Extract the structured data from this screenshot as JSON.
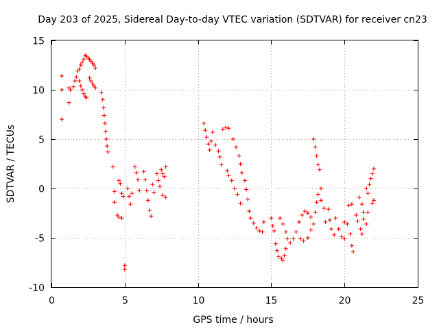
{
  "chart_data": {
    "type": "scatter",
    "title": "Day 203 of 2025, Sidereal Day-to-day VTEC variation (SDTVAR) for receiver cn23",
    "xlabel": "GPS time / hours",
    "ylabel": "SDTVAR / TECUs",
    "xlim": [
      0,
      25
    ],
    "ylim": [
      -10,
      15
    ],
    "x_ticks": [
      0,
      5,
      10,
      15,
      20,
      25
    ],
    "x_tick_labels": [
      "0",
      "5",
      "10",
      "15",
      "20",
      "25"
    ],
    "y_ticks": [
      -10,
      -5,
      0,
      5,
      10,
      15
    ],
    "y_tick_labels": [
      "-10",
      "-5",
      "0",
      "5",
      "10",
      "15"
    ],
    "grid": true,
    "marker": "+",
    "color": "#ff0000",
    "series": [
      {
        "name": "SDTVAR",
        "points": [
          [
            0.7,
            11.4
          ],
          [
            0.7,
            10.0
          ],
          [
            0.7,
            7.0
          ],
          [
            1.2,
            10.2
          ],
          [
            1.2,
            8.7
          ],
          [
            1.3,
            10.0
          ],
          [
            1.5,
            10.3
          ],
          [
            1.6,
            10.9
          ],
          [
            1.7,
            11.3
          ],
          [
            1.8,
            11.9
          ],
          [
            1.9,
            12.1
          ],
          [
            2.0,
            12.5
          ],
          [
            2.1,
            12.8
          ],
          [
            2.2,
            13.1
          ],
          [
            2.3,
            13.5
          ],
          [
            2.4,
            13.4
          ],
          [
            2.5,
            13.2
          ],
          [
            2.6,
            13.1
          ],
          [
            2.7,
            12.9
          ],
          [
            2.8,
            12.7
          ],
          [
            2.9,
            12.5
          ],
          [
            3.0,
            12.2
          ],
          [
            1.9,
            10.9
          ],
          [
            2.0,
            10.4
          ],
          [
            2.1,
            10.0
          ],
          [
            2.2,
            9.6
          ],
          [
            2.3,
            9.3
          ],
          [
            2.4,
            9.2
          ],
          [
            2.6,
            11.2
          ],
          [
            2.7,
            10.9
          ],
          [
            2.8,
            10.6
          ],
          [
            2.9,
            10.4
          ],
          [
            3.0,
            10.2
          ],
          [
            3.4,
            9.7
          ],
          [
            3.5,
            9.0
          ],
          [
            3.55,
            8.2
          ],
          [
            3.6,
            7.4
          ],
          [
            3.65,
            6.6
          ],
          [
            3.7,
            5.8
          ],
          [
            3.75,
            5.0
          ],
          [
            3.8,
            4.3
          ],
          [
            3.85,
            3.7
          ],
          [
            4.2,
            2.2
          ],
          [
            4.3,
            -0.3
          ],
          [
            4.3,
            -1.4
          ],
          [
            4.6,
            0.8
          ],
          [
            4.7,
            0.5
          ],
          [
            4.8,
            -0.5
          ],
          [
            4.9,
            -0.8
          ],
          [
            4.5,
            -2.7
          ],
          [
            4.6,
            -2.9
          ],
          [
            4.8,
            -3.0
          ],
          [
            5.0,
            -7.8
          ],
          [
            5.0,
            -8.2
          ],
          [
            5.2,
            0.0
          ],
          [
            5.3,
            -0.8
          ],
          [
            5.4,
            -1.6
          ],
          [
            5.5,
            -0.5
          ],
          [
            5.7,
            2.2
          ],
          [
            5.8,
            1.6
          ],
          [
            5.9,
            0.9
          ],
          [
            6.0,
            -0.2
          ],
          [
            6.3,
            1.7
          ],
          [
            6.4,
            0.9
          ],
          [
            6.5,
            -0.2
          ],
          [
            6.6,
            -1.2
          ],
          [
            6.7,
            -2.2
          ],
          [
            6.8,
            -2.8
          ],
          [
            6.9,
            0.4
          ],
          [
            7.0,
            -0.4
          ],
          [
            7.2,
            1.5
          ],
          [
            7.3,
            0.8
          ],
          [
            7.4,
            0.2
          ],
          [
            7.5,
            1.9
          ],
          [
            7.6,
            1.5
          ],
          [
            7.7,
            1.2
          ],
          [
            7.8,
            2.2
          ],
          [
            7.6,
            -0.7
          ],
          [
            7.8,
            -0.9
          ],
          [
            10.4,
            6.6
          ],
          [
            10.5,
            5.9
          ],
          [
            10.6,
            5.2
          ],
          [
            10.7,
            4.5
          ],
          [
            10.8,
            3.9
          ],
          [
            10.9,
            4.8
          ],
          [
            11.0,
            5.7
          ],
          [
            11.2,
            4.4
          ],
          [
            11.4,
            3.8
          ],
          [
            11.5,
            3.2
          ],
          [
            11.6,
            2.4
          ],
          [
            11.7,
            6.0
          ],
          [
            11.9,
            6.2
          ],
          [
            12.1,
            6.1
          ],
          [
            12.0,
            1.8
          ],
          [
            12.1,
            1.3
          ],
          [
            12.3,
            0.8
          ],
          [
            12.4,
            5.0
          ],
          [
            12.6,
            4.2
          ],
          [
            12.8,
            3.3
          ],
          [
            12.9,
            2.5
          ],
          [
            12.5,
            0.0
          ],
          [
            12.7,
            -0.6
          ],
          [
            12.9,
            -1.5
          ],
          [
            13.0,
            1.6
          ],
          [
            13.2,
            0.8
          ],
          [
            13.3,
            -0.1
          ],
          [
            13.4,
            -1.1
          ],
          [
            13.5,
            -2.3
          ],
          [
            13.6,
            -3.0
          ],
          [
            13.8,
            -3.5
          ],
          [
            14.0,
            -4.0
          ],
          [
            14.2,
            -4.3
          ],
          [
            14.4,
            -4.4
          ],
          [
            14.5,
            -3.4
          ],
          [
            15.0,
            -3.0
          ],
          [
            15.1,
            -3.8
          ],
          [
            15.2,
            -4.3
          ],
          [
            15.3,
            -5.6
          ],
          [
            15.4,
            -6.3
          ],
          [
            15.5,
            -6.9
          ],
          [
            15.7,
            -7.1
          ],
          [
            15.8,
            -7.3
          ],
          [
            15.9,
            -6.8
          ],
          [
            16.0,
            -6.1
          ],
          [
            15.6,
            -3.0
          ],
          [
            15.8,
            -3.6
          ],
          [
            16.0,
            -4.4
          ],
          [
            16.1,
            -5.1
          ],
          [
            16.3,
            -5.5
          ],
          [
            16.5,
            -5.1
          ],
          [
            16.7,
            -4.4
          ],
          [
            16.9,
            -3.4
          ],
          [
            17.1,
            -2.7
          ],
          [
            17.3,
            -2.3
          ],
          [
            17.5,
            -2.5
          ],
          [
            17.7,
            -2.9
          ],
          [
            17.0,
            -5.1
          ],
          [
            17.2,
            -5.3
          ],
          [
            17.5,
            -5.0
          ],
          [
            17.7,
            -4.2
          ],
          [
            17.9,
            -3.6
          ],
          [
            18.0,
            -2.4
          ],
          [
            18.1,
            -1.4
          ],
          [
            18.2,
            -0.6
          ],
          [
            18.4,
            0.0
          ],
          [
            17.9,
            5.0
          ],
          [
            18.0,
            4.2
          ],
          [
            18.1,
            3.3
          ],
          [
            18.2,
            2.4
          ],
          [
            18.3,
            1.9
          ],
          [
            18.4,
            -1.2
          ],
          [
            18.6,
            -2.0
          ],
          [
            18.7,
            -3.4
          ],
          [
            18.9,
            -2.1
          ],
          [
            19.0,
            -3.2
          ],
          [
            19.1,
            -4.1
          ],
          [
            19.3,
            -4.7
          ],
          [
            19.4,
            -3.0
          ],
          [
            19.6,
            -4.1
          ],
          [
            19.8,
            -4.9
          ],
          [
            20.0,
            -5.1
          ],
          [
            20.0,
            -3.4
          ],
          [
            20.2,
            -3.6
          ],
          [
            20.4,
            -4.6
          ],
          [
            20.5,
            -5.8
          ],
          [
            20.6,
            -6.4
          ],
          [
            20.3,
            -1.7
          ],
          [
            20.5,
            -1.6
          ],
          [
            20.8,
            -2.7
          ],
          [
            20.9,
            -3.3
          ],
          [
            21.1,
            -4.1
          ],
          [
            21.2,
            -4.6
          ],
          [
            21.0,
            -0.9
          ],
          [
            21.2,
            -1.6
          ],
          [
            21.3,
            -2.4
          ],
          [
            21.3,
            -3.1
          ],
          [
            21.5,
            -3.6
          ],
          [
            21.6,
            -2.4
          ],
          [
            21.5,
            0.0
          ],
          [
            21.6,
            -0.5
          ],
          [
            21.7,
            0.4
          ],
          [
            21.8,
            1.0
          ],
          [
            21.9,
            1.5
          ],
          [
            22.0,
            2.0
          ],
          [
            21.9,
            -1.5
          ],
          [
            22.0,
            -1.2
          ]
        ]
      }
    ]
  }
}
